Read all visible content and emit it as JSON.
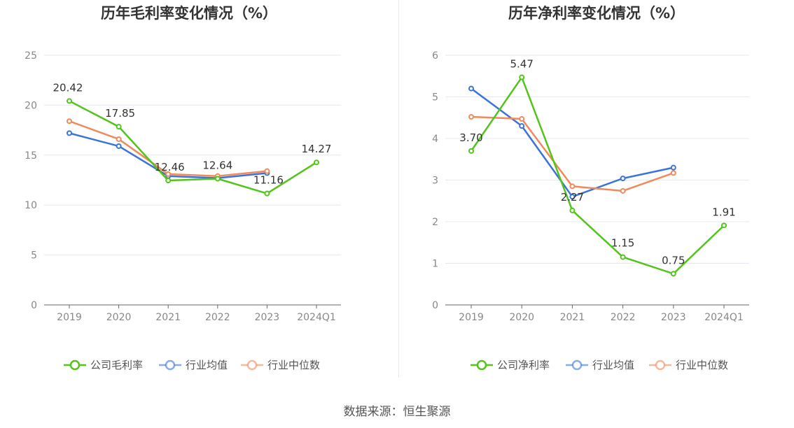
{
  "colors": {
    "company": "#52c41a",
    "industry_avg": "#3a74da",
    "industry_median": "#f08a5d"
  },
  "source": "数据来源：恒生聚源",
  "chart_data": [
    {
      "type": "line",
      "title": "历年毛利率变化情况（%）",
      "categories": [
        "2019",
        "2020",
        "2021",
        "2022",
        "2023",
        "2024Q1"
      ],
      "ylim": [
        0,
        25
      ],
      "yticks": [
        0,
        5,
        10,
        15,
        20,
        25
      ],
      "grid": true,
      "legend_position": "bottom",
      "series": [
        {
          "name": "公司毛利率",
          "key": "company",
          "values": [
            20.42,
            17.85,
            12.46,
            12.64,
            11.16,
            14.27
          ],
          "labels": [
            "20.42",
            "17.85",
            "12.46",
            "12.64",
            "11.16",
            "14.27"
          ]
        },
        {
          "name": "行业均值",
          "key": "industry_avg",
          "values": [
            17.2,
            15.9,
            12.9,
            12.7,
            13.2,
            null
          ]
        },
        {
          "name": "行业中位数",
          "key": "industry_median",
          "values": [
            18.4,
            16.6,
            13.1,
            12.9,
            13.4,
            null
          ]
        }
      ]
    },
    {
      "type": "line",
      "title": "历年净利率变化情况（%）",
      "categories": [
        "2019",
        "2020",
        "2021",
        "2022",
        "2023",
        "2024Q1"
      ],
      "ylim": [
        0,
        6
      ],
      "yticks": [
        0,
        1,
        2,
        3,
        4,
        5,
        6
      ],
      "grid": true,
      "legend_position": "bottom",
      "series": [
        {
          "name": "公司净利率",
          "key": "company",
          "values": [
            3.7,
            5.47,
            2.27,
            1.15,
            0.75,
            1.91
          ],
          "labels": [
            "3.70",
            "5.47",
            "2.27",
            "1.15",
            "0.75",
            "1.91"
          ]
        },
        {
          "name": "行业均值",
          "key": "industry_avg",
          "values": [
            5.2,
            4.3,
            2.6,
            3.04,
            3.3,
            null
          ]
        },
        {
          "name": "行业中位数",
          "key": "industry_median",
          "values": [
            4.52,
            4.47,
            2.85,
            2.74,
            3.17,
            null
          ]
        }
      ]
    }
  ]
}
